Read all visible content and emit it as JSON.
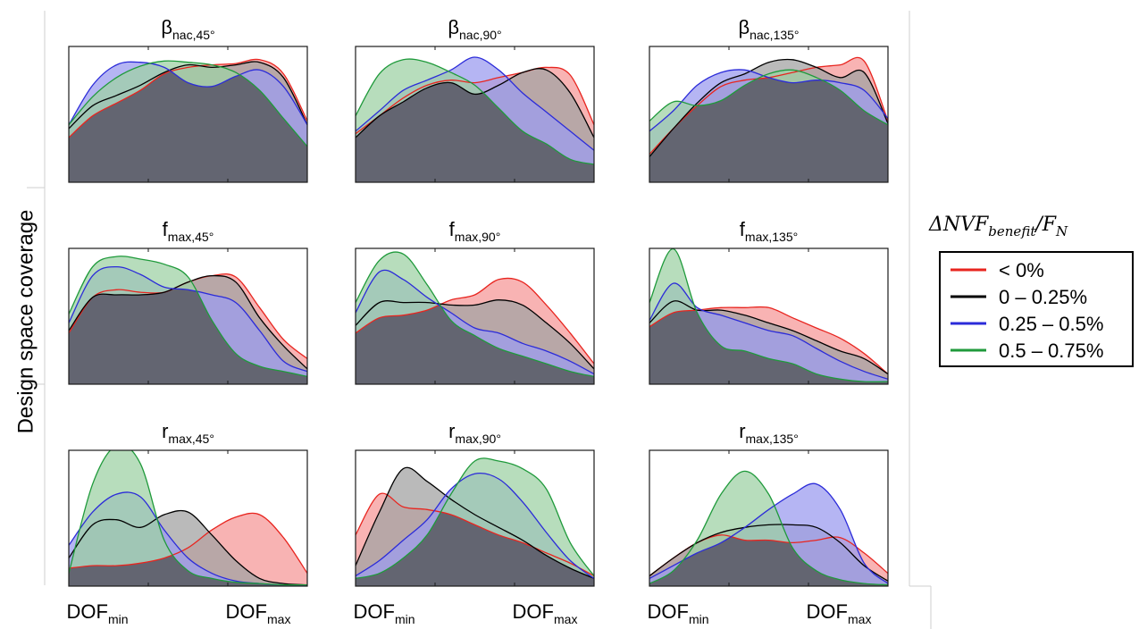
{
  "chart_data": {
    "type": "area",
    "y_label": "Design space coverage",
    "x_tick_labels": [
      {
        "base": "DOF",
        "sub": "min"
      },
      {
        "base": "DOF",
        "sub": "max"
      }
    ],
    "legend": {
      "title": {
        "delta": "Δ",
        "base": "NVF",
        "sub": "benefit",
        "slash": "/",
        "F": "F",
        "F_sub": "N"
      },
      "placement": "right",
      "entries": [
        {
          "label": "< 0%",
          "color": "#e8251f"
        },
        {
          "label": "0 – 0.25%",
          "color": "#000000"
        },
        {
          "label": "0.25 – 0.5%",
          "color": "#2b2bd9"
        },
        {
          "label": "0.5 – 0.75%",
          "color": "#1f9a3b"
        }
      ]
    },
    "colors": {
      "red": "#e8251f",
      "black": "#000000",
      "blue": "#2b2bd9",
      "green": "#1f9a3b",
      "red_fill": "#f59a9a",
      "black_fill": "#a3a3a3",
      "blue_fill": "#9c9cef",
      "green_fill": "#9fd2a6",
      "overlap_fill": "#636571"
    },
    "ylim": [
      0,
      1
    ],
    "x": [
      0,
      0.1,
      0.2,
      0.3,
      0.4,
      0.5,
      0.6,
      0.7,
      0.8,
      0.9,
      1.0
    ],
    "panels": [
      {
        "title": {
          "base": "β",
          "sub": "nac,45°"
        },
        "series": [
          {
            "color": "#e8251f",
            "values": [
              0.35,
              0.52,
              0.62,
              0.72,
              0.85,
              0.9,
              0.92,
              0.93,
              0.96,
              0.85,
              0.48
            ]
          },
          {
            "color": "#000000",
            "values": [
              0.42,
              0.6,
              0.68,
              0.76,
              0.86,
              0.92,
              0.9,
              0.92,
              0.94,
              0.82,
              0.45
            ]
          },
          {
            "color": "#2b2bd9",
            "values": [
              0.45,
              0.76,
              0.92,
              0.94,
              0.9,
              0.78,
              0.75,
              0.83,
              0.88,
              0.75,
              0.45
            ]
          },
          {
            "color": "#1f9a3b",
            "values": [
              0.45,
              0.67,
              0.82,
              0.91,
              0.95,
              0.94,
              0.92,
              0.86,
              0.72,
              0.5,
              0.28
            ]
          }
        ]
      },
      {
        "title": {
          "base": "β",
          "sub": "nac,90°"
        },
        "series": [
          {
            "color": "#e8251f",
            "values": [
              0.38,
              0.52,
              0.66,
              0.76,
              0.8,
              0.78,
              0.82,
              0.86,
              0.9,
              0.84,
              0.45
            ]
          },
          {
            "color": "#000000",
            "values": [
              0.35,
              0.52,
              0.63,
              0.74,
              0.78,
              0.69,
              0.76,
              0.86,
              0.88,
              0.7,
              0.35
            ]
          },
          {
            "color": "#2b2bd9",
            "values": [
              0.4,
              0.56,
              0.72,
              0.8,
              0.88,
              0.98,
              0.88,
              0.7,
              0.55,
              0.4,
              0.25
            ]
          },
          {
            "color": "#1f9a3b",
            "values": [
              0.52,
              0.85,
              0.96,
              0.94,
              0.86,
              0.76,
              0.58,
              0.4,
              0.3,
              0.18,
              0.14
            ]
          }
        ]
      },
      {
        "title": {
          "base": "β",
          "sub": "nac,135°"
        },
        "series": [
          {
            "color": "#e8251f",
            "values": [
              0.22,
              0.42,
              0.6,
              0.75,
              0.8,
              0.82,
              0.86,
              0.9,
              0.92,
              0.95,
              0.48
            ]
          },
          {
            "color": "#000000",
            "values": [
              0.2,
              0.42,
              0.62,
              0.78,
              0.85,
              0.94,
              0.96,
              0.9,
              0.82,
              0.86,
              0.46
            ]
          },
          {
            "color": "#2b2bd9",
            "values": [
              0.4,
              0.56,
              0.76,
              0.86,
              0.88,
              0.82,
              0.78,
              0.8,
              0.78,
              0.72,
              0.5
            ]
          },
          {
            "color": "#1f9a3b",
            "values": [
              0.48,
              0.63,
              0.6,
              0.64,
              0.76,
              0.85,
              0.88,
              0.82,
              0.72,
              0.56,
              0.45
            ]
          }
        ]
      },
      {
        "title": {
          "base": "f",
          "sub": "max,45°"
        },
        "series": [
          {
            "color": "#e8251f",
            "values": [
              0.4,
              0.68,
              0.74,
              0.72,
              0.72,
              0.8,
              0.85,
              0.84,
              0.6,
              0.35,
              0.2
            ]
          },
          {
            "color": "#000000",
            "values": [
              0.42,
              0.68,
              0.7,
              0.7,
              0.72,
              0.8,
              0.85,
              0.8,
              0.52,
              0.3,
              0.12
            ]
          },
          {
            "color": "#2b2bd9",
            "values": [
              0.48,
              0.85,
              0.92,
              0.86,
              0.76,
              0.74,
              0.7,
              0.64,
              0.42,
              0.18,
              0.1
            ]
          },
          {
            "color": "#1f9a3b",
            "values": [
              0.55,
              0.92,
              1.0,
              0.98,
              0.94,
              0.84,
              0.5,
              0.24,
              0.14,
              0.1,
              0.06
            ]
          }
        ]
      },
      {
        "title": {
          "base": "f",
          "sub": "max,90°"
        },
        "series": [
          {
            "color": "#e8251f",
            "values": [
              0.4,
              0.52,
              0.54,
              0.58,
              0.66,
              0.7,
              0.82,
              0.8,
              0.62,
              0.4,
              0.16
            ]
          },
          {
            "color": "#000000",
            "values": [
              0.46,
              0.64,
              0.64,
              0.64,
              0.62,
              0.62,
              0.66,
              0.62,
              0.48,
              0.32,
              0.12
            ]
          },
          {
            "color": "#2b2bd9",
            "values": [
              0.56,
              0.88,
              0.82,
              0.68,
              0.56,
              0.44,
              0.4,
              0.32,
              0.26,
              0.18,
              0.08
            ]
          },
          {
            "color": "#1f9a3b",
            "values": [
              0.64,
              0.97,
              1.02,
              0.78,
              0.5,
              0.38,
              0.28,
              0.22,
              0.16,
              0.1,
              0.06
            ]
          }
        ]
      },
      {
        "title": {
          "base": "f",
          "sub": "max,135°"
        },
        "series": [
          {
            "color": "#e8251f",
            "values": [
              0.45,
              0.56,
              0.58,
              0.6,
              0.6,
              0.6,
              0.52,
              0.44,
              0.36,
              0.24,
              0.08
            ]
          },
          {
            "color": "#000000",
            "values": [
              0.48,
              0.65,
              0.58,
              0.58,
              0.54,
              0.48,
              0.42,
              0.34,
              0.26,
              0.2,
              0.08
            ]
          },
          {
            "color": "#2b2bd9",
            "values": [
              0.5,
              0.79,
              0.6,
              0.54,
              0.48,
              0.42,
              0.38,
              0.28,
              0.18,
              0.1,
              0.04
            ]
          },
          {
            "color": "#1f9a3b",
            "values": [
              0.64,
              1.06,
              0.56,
              0.3,
              0.26,
              0.2,
              0.16,
              0.08,
              0.04,
              0.02,
              0.02
            ]
          }
        ]
      },
      {
        "title": {
          "base": "r",
          "sub": "max,45°"
        },
        "series": [
          {
            "color": "#e8251f",
            "values": [
              0.14,
              0.16,
              0.16,
              0.18,
              0.22,
              0.3,
              0.44,
              0.54,
              0.56,
              0.38,
              0.1
            ]
          },
          {
            "color": "#000000",
            "values": [
              0.22,
              0.48,
              0.52,
              0.46,
              0.56,
              0.58,
              0.4,
              0.2,
              0.06,
              0.02,
              0.01
            ]
          },
          {
            "color": "#2b2bd9",
            "values": [
              0.32,
              0.58,
              0.72,
              0.7,
              0.44,
              0.22,
              0.1,
              0.04,
              0.02,
              0.01,
              0.01
            ]
          },
          {
            "color": "#1f9a3b",
            "values": [
              0.1,
              0.8,
              1.1,
              0.96,
              0.36,
              0.12,
              0.06,
              0.03,
              0.02,
              0.01,
              0.01
            ]
          }
        ]
      },
      {
        "title": {
          "base": "r",
          "sub": "max,90°"
        },
        "series": [
          {
            "color": "#e8251f",
            "values": [
              0.4,
              0.72,
              0.62,
              0.6,
              0.56,
              0.48,
              0.4,
              0.34,
              0.26,
              0.18,
              0.08
            ]
          },
          {
            "color": "#000000",
            "values": [
              0.16,
              0.58,
              0.92,
              0.82,
              0.68,
              0.56,
              0.46,
              0.36,
              0.24,
              0.14,
              0.06
            ]
          },
          {
            "color": "#2b2bd9",
            "values": [
              0.08,
              0.2,
              0.36,
              0.52,
              0.76,
              0.88,
              0.84,
              0.66,
              0.42,
              0.2,
              0.06
            ]
          },
          {
            "color": "#1f9a3b",
            "values": [
              0.06,
              0.1,
              0.22,
              0.4,
              0.72,
              0.98,
              0.98,
              0.92,
              0.76,
              0.34,
              0.08
            ]
          }
        ]
      },
      {
        "title": {
          "base": "r",
          "sub": "max,135°"
        },
        "series": [
          {
            "color": "#e8251f",
            "values": [
              0.08,
              0.22,
              0.34,
              0.4,
              0.36,
              0.36,
              0.34,
              0.36,
              0.38,
              0.26,
              0.1
            ]
          },
          {
            "color": "#000000",
            "values": [
              0.08,
              0.22,
              0.34,
              0.42,
              0.46,
              0.48,
              0.48,
              0.46,
              0.34,
              0.16,
              0.04
            ]
          },
          {
            "color": "#2b2bd9",
            "values": [
              0.06,
              0.16,
              0.26,
              0.34,
              0.46,
              0.6,
              0.72,
              0.8,
              0.6,
              0.18,
              0.02
            ]
          },
          {
            "color": "#1f9a3b",
            "values": [
              0.02,
              0.12,
              0.36,
              0.72,
              0.9,
              0.72,
              0.3,
              0.12,
              0.05,
              0.02,
              0.01
            ]
          }
        ]
      }
    ]
  }
}
